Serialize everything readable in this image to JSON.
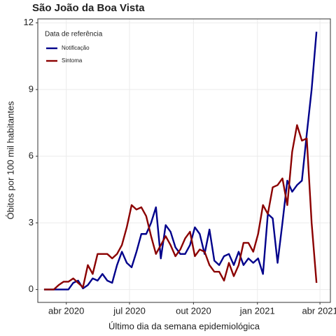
{
  "chart_data": {
    "type": "line",
    "title": "São João da Boa Vista",
    "x_label": "Último dia da semana epidemiológica",
    "y_label": "Óbitos por 100 mil habitantes",
    "legend_title": "Data de referência",
    "legend_position": "top-left",
    "grid": true,
    "x": [
      "2020-02-29",
      "2020-03-07",
      "2020-03-14",
      "2020-03-21",
      "2020-03-28",
      "2020-04-04",
      "2020-04-11",
      "2020-04-18",
      "2020-04-25",
      "2020-05-02",
      "2020-05-09",
      "2020-05-16",
      "2020-05-23",
      "2020-05-30",
      "2020-06-06",
      "2020-06-13",
      "2020-06-20",
      "2020-06-27",
      "2020-07-04",
      "2020-07-11",
      "2020-07-18",
      "2020-07-25",
      "2020-08-01",
      "2020-08-08",
      "2020-08-15",
      "2020-08-22",
      "2020-08-29",
      "2020-09-05",
      "2020-09-12",
      "2020-09-19",
      "2020-09-26",
      "2020-10-03",
      "2020-10-10",
      "2020-10-17",
      "2020-10-24",
      "2020-10-31",
      "2020-11-07",
      "2020-11-14",
      "2020-11-21",
      "2020-11-28",
      "2020-12-05",
      "2020-12-12",
      "2020-12-19",
      "2020-12-26",
      "2021-01-02",
      "2021-01-09",
      "2021-01-16",
      "2021-01-23",
      "2021-01-30",
      "2021-02-06",
      "2021-02-13",
      "2021-02-20",
      "2021-02-27",
      "2021-03-06",
      "2021-03-13",
      "2021-03-20",
      "2021-03-27"
    ],
    "series": [
      {
        "name": "Notificação",
        "color": "#00008b",
        "values": [
          0,
          0,
          0,
          0,
          0,
          0,
          0.3,
          0.4,
          0.05,
          0.2,
          0.5,
          0.4,
          0.7,
          0.4,
          0.3,
          1.1,
          1.7,
          1.2,
          1.0,
          1.7,
          2.5,
          2.5,
          3.0,
          3.7,
          1.4,
          2.9,
          2.6,
          1.9,
          1.6,
          1.6,
          2.0,
          2.8,
          2.5,
          1.6,
          2.7,
          1.3,
          1.1,
          1.5,
          1.6,
          1.1,
          1.7,
          1.1,
          1.4,
          1.2,
          1.4,
          0.7,
          3.4,
          3.2,
          1.2,
          3.0,
          4.9,
          4.4,
          4.7,
          4.9,
          7.0,
          9.0,
          11.6
        ]
      },
      {
        "name": "Sintoma",
        "color": "#8b0000",
        "values": [
          0,
          0,
          0,
          0.2,
          0.35,
          0.35,
          0.5,
          0.3,
          0.1,
          1.1,
          0.7,
          1.6,
          1.6,
          1.6,
          1.4,
          1.6,
          2.0,
          2.8,
          3.8,
          3.6,
          3.7,
          3.3,
          2.4,
          1.6,
          2.0,
          2.4,
          2.0,
          1.5,
          1.8,
          2.3,
          2.6,
          1.5,
          1.8,
          1.7,
          1.1,
          0.8,
          0.8,
          0.4,
          1.2,
          0.6,
          1.1,
          2.1,
          2.1,
          1.7,
          2.5,
          3.8,
          3.4,
          4.6,
          4.7,
          5.0,
          3.8,
          6.2,
          7.4,
          6.7,
          6.8,
          3.0,
          0.3
        ]
      }
    ],
    "xlim": [
      "2020-02-20",
      "2021-04-16"
    ],
    "xticks": [
      {
        "value": "2020-04-01",
        "label": "abr 2020"
      },
      {
        "value": "2020-07-01",
        "label": "jul 2020"
      },
      {
        "value": "2020-10-01",
        "label": "out 2020"
      },
      {
        "value": "2021-01-01",
        "label": "jan 2021"
      },
      {
        "value": "2021-04-01",
        "label": "abr 2021"
      }
    ],
    "ylim": [
      -0.58,
      12.18
    ],
    "yticks": [
      0,
      3,
      6,
      9,
      12
    ]
  }
}
